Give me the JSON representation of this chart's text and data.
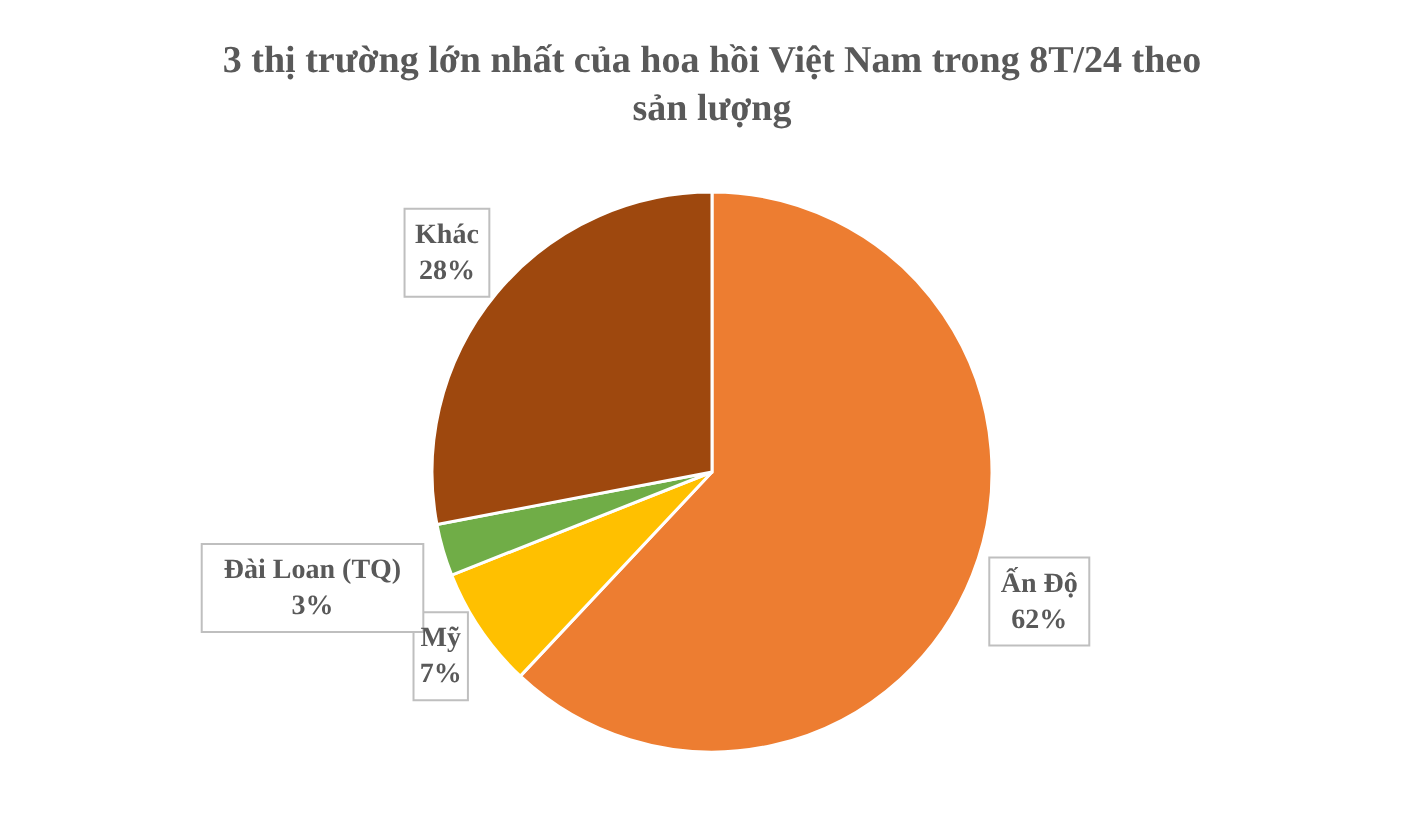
{
  "chart_data": {
    "type": "pie",
    "title": "3 thị trường lớn nhất của hoa hồi Việt Nam trong 8T/24 theo sản lượng",
    "categories": [
      "Ấn Độ",
      "Mỹ",
      "Đài Loan (TQ)",
      "Khác"
    ],
    "values": [
      62,
      7,
      3,
      28
    ],
    "colors": [
      "#ed7d31",
      "#ffc000",
      "#70ad47",
      "#9e480e"
    ],
    "value_labels": [
      "62%",
      "7%",
      "3%",
      "28%"
    ],
    "legend": false
  }
}
